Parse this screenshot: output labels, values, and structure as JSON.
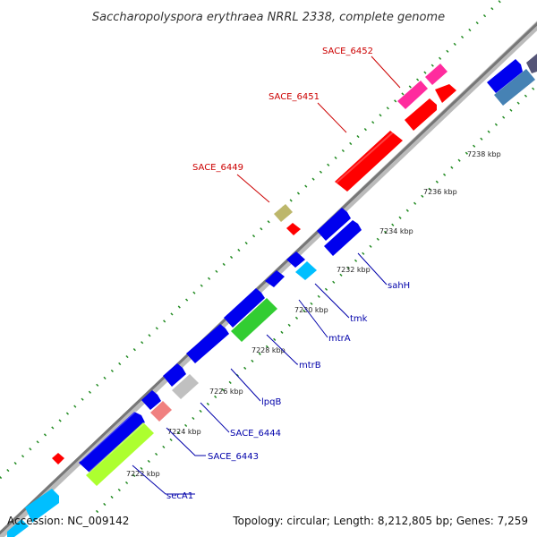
{
  "title": "Saccharopolyspora erythraea NRRL 2338, complete genome",
  "footer": {
    "accession": "Accession: NC_009142",
    "summary": "Topology: circular; Length: 8,212,805 bp; Genes: 7,259"
  },
  "colors": {
    "backbone": "#888888",
    "tick_major": "#228b22",
    "tick_minor": "#228b22",
    "label_red": "#cc0000",
    "label_blue": "#0000aa"
  },
  "kbp_labels": [
    "7222 kbp",
    "7224 kbp",
    "7226 kbp",
    "7228 kbp",
    "7230 kbp",
    "7232 kbp",
    "7234 kbp",
    "7236 kbp",
    "7238 kbp"
  ],
  "gene_labels_top": [
    "SACE_6449",
    "SACE_6451",
    "SACE_6452"
  ],
  "gene_labels_bottom": [
    "secA1",
    "SACE_6443",
    "SACE_6444",
    "lpqB",
    "mtrB",
    "mtrA",
    "tmk",
    "sahH"
  ]
}
